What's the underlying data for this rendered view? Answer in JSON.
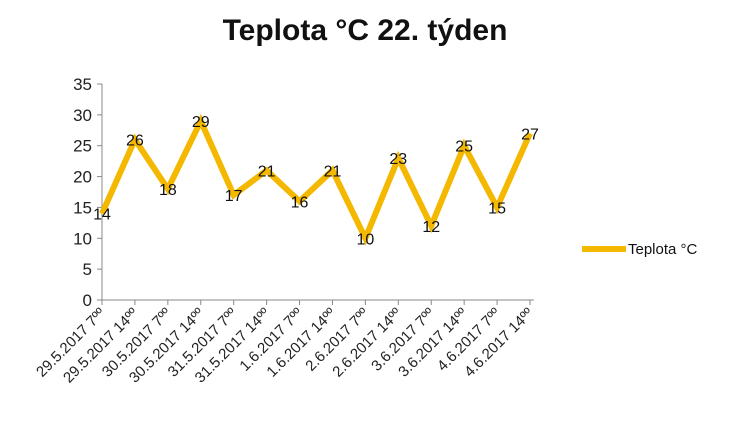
{
  "chart_data": {
    "type": "line",
    "title": "Teplota °C 22. týden",
    "xlabel": "",
    "ylabel": "",
    "ylim": [
      0,
      35
    ],
    "ytick_step": 5,
    "grid": false,
    "legend_position": "right",
    "categories": [
      "29.5.2017 7ºº",
      "29.5.2017 14ºº",
      "30.5.2017 7ºº",
      "30.5.2017 14ºº",
      "31.5.2017 7ºº",
      "31.5.2017 14ºº",
      "1.6.2017 7ºº",
      "1.6.2017 14ºº",
      "2.6.2017 7ºº",
      "2.6.2017 14ºº",
      "3.6.2017 7ºº",
      "3.6.2017 14ºº",
      "4.6.2017 7ºº",
      "4.6.2017 14ºº"
    ],
    "series": [
      {
        "name": "Teplota °C",
        "color": "#F5B800",
        "values": [
          14,
          26,
          18,
          29,
          17,
          21,
          16,
          21,
          10,
          23,
          12,
          25,
          15,
          27
        ]
      }
    ]
  }
}
